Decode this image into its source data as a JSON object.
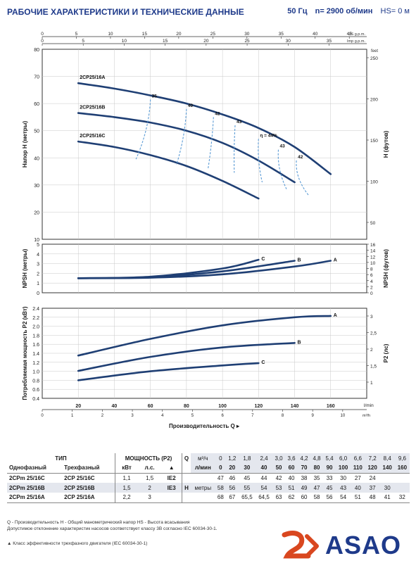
{
  "header": {
    "title": "РАБОЧИЕ ХАРАКТЕРИСТИКИ И ТЕХНИЧЕСКИЕ ДАННЫЕ",
    "freq": "50 Гц",
    "speed": "n= 2900 об/мин",
    "hs": "HS= 0 м"
  },
  "chart_data": [
    {
      "type": "line",
      "title": "",
      "xlabel": "Производительность Q",
      "ylabel": "Напор H (метры)",
      "ylabel_right": "H (футов)",
      "xlim": [
        0,
        180
      ],
      "ylim": [
        10,
        80
      ],
      "x_unit": "l/min",
      "top_axis_unit_top": "US g.p.m.",
      "top_axis_unit_bottom": "Imp g.p.m.",
      "top_ticks_us": [
        "0",
        "5",
        "10",
        "15",
        "20",
        "25",
        "30",
        "35",
        "40",
        "45"
      ],
      "top_ticks_imp": [
        "0",
        "5",
        "10",
        "15",
        "20",
        "25",
        "30",
        "35"
      ],
      "right_axis_unit": "feet",
      "right_ticks": [
        "50",
        "100",
        "150",
        "200",
        "250"
      ],
      "series": [
        {
          "name": "2CP25/16A",
          "x": [
            20,
            40,
            60,
            80,
            100,
            120,
            140,
            160
          ],
          "y": [
            67.5,
            65.5,
            63,
            60,
            56,
            51,
            44,
            34
          ]
        },
        {
          "name": "2CP25/16B",
          "x": [
            20,
            40,
            60,
            80,
            100,
            120,
            140
          ],
          "y": [
            56.5,
            55,
            53,
            50,
            45.5,
            39,
            31
          ]
        },
        {
          "name": "2CP25/16C",
          "x": [
            20,
            40,
            60,
            80,
            100,
            120
          ],
          "y": [
            46,
            44,
            41,
            37,
            31.5,
            25
          ]
        }
      ],
      "efficiency_labels": [
        "35",
        "40",
        "42",
        "43",
        "η = 44%",
        "43",
        "42"
      ]
    },
    {
      "type": "line",
      "ylabel": "NPSH (метры)",
      "ylabel_right": "NPSH (футов)",
      "xlim": [
        0,
        180
      ],
      "ylim": [
        0,
        5
      ],
      "right_ticks": [
        "0",
        "2",
        "4",
        "6",
        "8",
        "10",
        "12",
        "14",
        "16"
      ],
      "series": [
        {
          "name": "A",
          "x": [
            20,
            60,
            100,
            140,
            160
          ],
          "y": [
            1.5,
            1.55,
            1.9,
            2.7,
            3.3
          ]
        },
        {
          "name": "B",
          "x": [
            20,
            60,
            100,
            140
          ],
          "y": [
            1.5,
            1.6,
            2.2,
            3.3
          ]
        },
        {
          "name": "C",
          "x": [
            20,
            60,
            100,
            120
          ],
          "y": [
            1.5,
            1.65,
            2.5,
            3.4
          ]
        }
      ]
    },
    {
      "type": "line",
      "ylabel": "Потребляемая мощность P2 (кВт)",
      "ylabel_right": "P2 (лс)",
      "xlim": [
        0,
        180
      ],
      "ylim": [
        0.4,
        2.4
      ],
      "x_unit": "l/min",
      "bottom_axis_unit": "m³/h",
      "bottom_ticks_m3h": [
        "0",
        "1",
        "2",
        "3",
        "4",
        "5",
        "6",
        "7",
        "8",
        "9",
        "10"
      ],
      "right_ticks": [
        "1",
        "1,5",
        "2",
        "2,5",
        "3"
      ],
      "series": [
        {
          "name": "A",
          "x": [
            20,
            60,
            100,
            140,
            160
          ],
          "y": [
            1.35,
            1.72,
            2.02,
            2.2,
            2.23
          ]
        },
        {
          "name": "B",
          "x": [
            20,
            60,
            100,
            140
          ],
          "y": [
            1.01,
            1.32,
            1.53,
            1.63
          ]
        },
        {
          "name": "C",
          "x": [
            20,
            60,
            100,
            120
          ],
          "y": [
            0.8,
            1.0,
            1.13,
            1.18
          ]
        }
      ]
    }
  ],
  "table": {
    "head1": {
      "type": "ТИП",
      "power": "МОЩНОСТЬ (P2)",
      "q": "Q",
      "unit_m3h": "м³/ч",
      "q_m3h": [
        "0",
        "1,2",
        "1,8",
        "2,4",
        "3,0",
        "3,6",
        "4,2",
        "4,8",
        "5,4",
        "6,0",
        "6,6",
        "7,2",
        "8,4",
        "9,6"
      ]
    },
    "head2": {
      "single": "Однофазный",
      "three": "Трехфазный",
      "kw": "кВт",
      "hp": "л.с.",
      "cls": "▲",
      "unit_lmin": "л/мин",
      "q_lmin": [
        "0",
        "20",
        "30",
        "40",
        "50",
        "60",
        "70",
        "80",
        "90",
        "100",
        "110",
        "120",
        "140",
        "160"
      ]
    },
    "h_label": "H",
    "h_unit": "метры",
    "rows": [
      {
        "single": "2CPm 25/16C",
        "three": "2CP 25/16C",
        "kw": "1,1",
        "hp": "1,5",
        "cls": "IE2",
        "h": [
          "47",
          "46",
          "45",
          "44",
          "42",
          "40",
          "38",
          "35",
          "33",
          "30",
          "27",
          "24",
          "",
          ""
        ]
      },
      {
        "single": "2CPm 25/16B",
        "three": "2CP 25/16B",
        "kw": "1,5",
        "hp": "2",
        "cls": "IE3",
        "h": [
          "58",
          "56",
          "55",
          "54",
          "53",
          "51",
          "49",
          "47",
          "45",
          "43",
          "40",
          "37",
          "30",
          ""
        ]
      },
      {
        "single": "2CPm 25/16A",
        "three": "2CP 25/16A",
        "kw": "2,2",
        "hp": "3",
        "cls": "",
        "h": [
          "68",
          "67",
          "65,5",
          "64,5",
          "63",
          "62",
          "60",
          "58",
          "56",
          "54",
          "51",
          "48",
          "41",
          "32"
        ]
      }
    ]
  },
  "notes": {
    "line1": "Q - Производительность   H - Общий манометрический напор   HS - Высота всасывания",
    "line2": "Допустимое отклонение характеристик насосов соответствует классу 3B согласно IEC 60034-30-1.",
    "line3": "▲  Класс эффективности трехфазного двигателя (IEC 60034-30-1)"
  },
  "logo": {
    "text": "ASAO"
  },
  "colors": {
    "curve": "#1f3f74",
    "eff": "#5b9bd5",
    "accent": "#d9471f",
    "header": "#1e3a8a"
  }
}
